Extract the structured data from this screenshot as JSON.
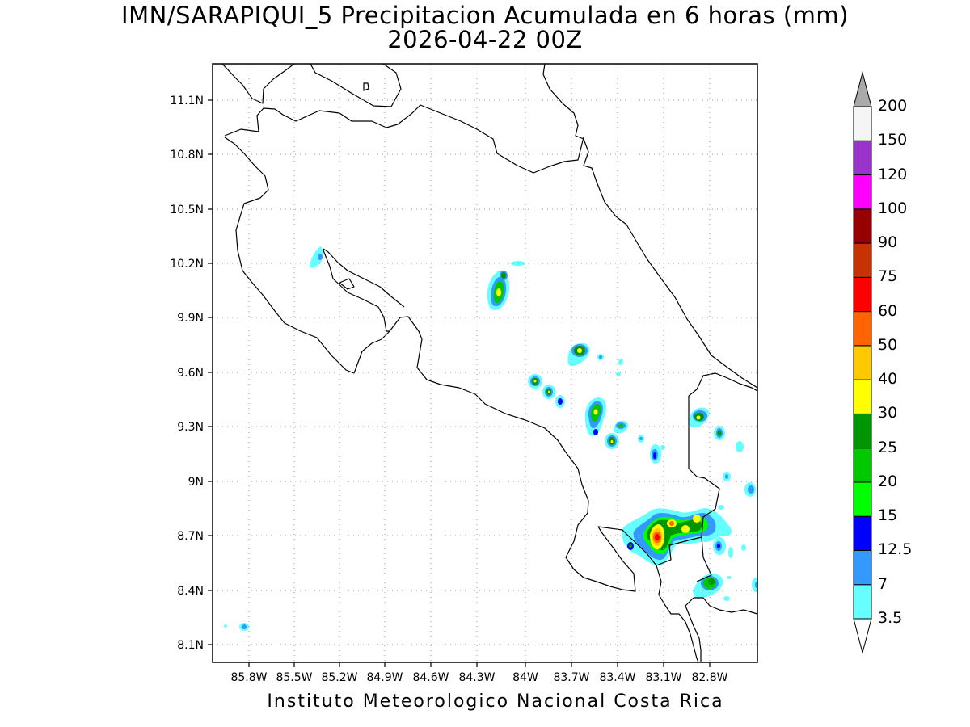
{
  "title": "IMN/SARAPIQUI_5 Precipitacion Acumulada en 6 horas (mm)",
  "subtitle": "2026-04-22 00Z",
  "footer": "Instituto Meteorologico Nacional Costa Rica",
  "map": {
    "lon_range": [
      -86.0,
      -82.6
    ],
    "lat_range": [
      8.0,
      11.3
    ],
    "lon_ticks": [
      "85.8W",
      "85.5W",
      "85.2W",
      "84.9W",
      "84.6W",
      "84.3W",
      "84W",
      "83.7W",
      "83.4W",
      "83.1W",
      "82.8W"
    ],
    "lat_ticks": [
      "11.1N",
      "10.8N",
      "10.5N",
      "10.2N",
      "9.9N",
      "9.6N",
      "9.3N",
      "9N",
      "8.7N",
      "8.4N",
      "8.1N"
    ],
    "gridlines": true,
    "gridline_style": "dotted"
  },
  "legend": {
    "placement": "right",
    "levels": [
      "3.5",
      "7",
      "12.5",
      "15",
      "20",
      "25",
      "30",
      "40",
      "50",
      "60",
      "75",
      "90",
      "100",
      "120",
      "150",
      "200"
    ],
    "colors": [
      "#66ffff",
      "#3399ff",
      "#0000ff",
      "#00ff00",
      "#00c800",
      "#009600",
      "#ffff00",
      "#ffc800",
      "#ff6400",
      "#ff0000",
      "#c83200",
      "#960000",
      "#ff00ff",
      "#9933cc",
      "#f5f5f5",
      "#aaaaaa"
    ]
  }
}
